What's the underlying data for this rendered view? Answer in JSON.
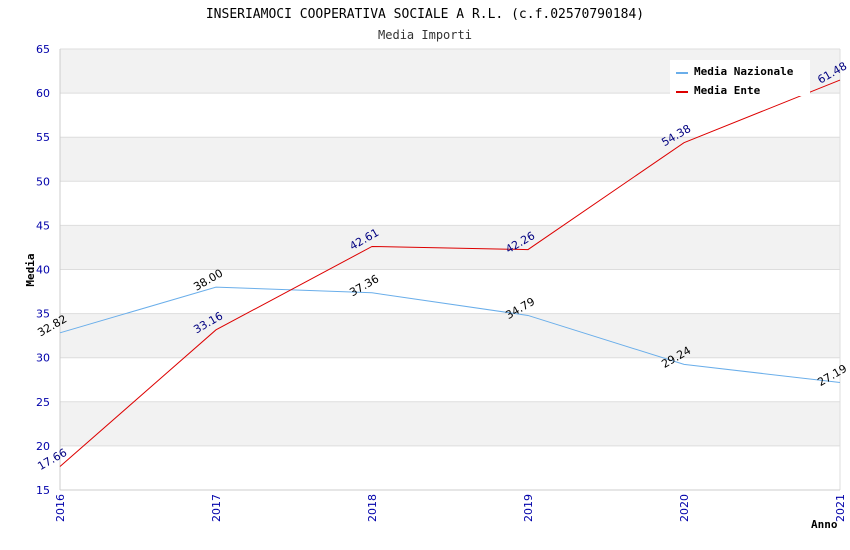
{
  "chart_data": {
    "type": "line",
    "title": "INSERIAMOCI COOPERATIVA SOCIALE A R.L. (c.f.02570790184)",
    "subtitle": "Media Importi",
    "xlabel": "Anno",
    "ylabel": "Media",
    "categories": [
      "2016",
      "2017",
      "2018",
      "2019",
      "2020",
      "2021"
    ],
    "ylim": [
      15,
      65
    ],
    "yticks": [
      15,
      20,
      25,
      30,
      35,
      40,
      45,
      50,
      55,
      60,
      65
    ],
    "legend_position": "top-right",
    "series": [
      {
        "name": "Media Nazionale",
        "color": "#6aaeea",
        "label_color": "#000000",
        "values": [
          32.82,
          38.0,
          37.36,
          34.79,
          29.24,
          27.19
        ],
        "labels": [
          "32.82",
          "38.00",
          "37.36",
          "34.79",
          "29.24",
          "27.19"
        ]
      },
      {
        "name": "Media Ente",
        "color": "#dd0000",
        "label_color": "#000080",
        "values": [
          17.66,
          33.16,
          42.61,
          42.26,
          54.38,
          61.48
        ],
        "labels": [
          "17.66",
          "33.16",
          "42.61",
          "42.26",
          "54.38",
          "61.48"
        ]
      }
    ]
  }
}
